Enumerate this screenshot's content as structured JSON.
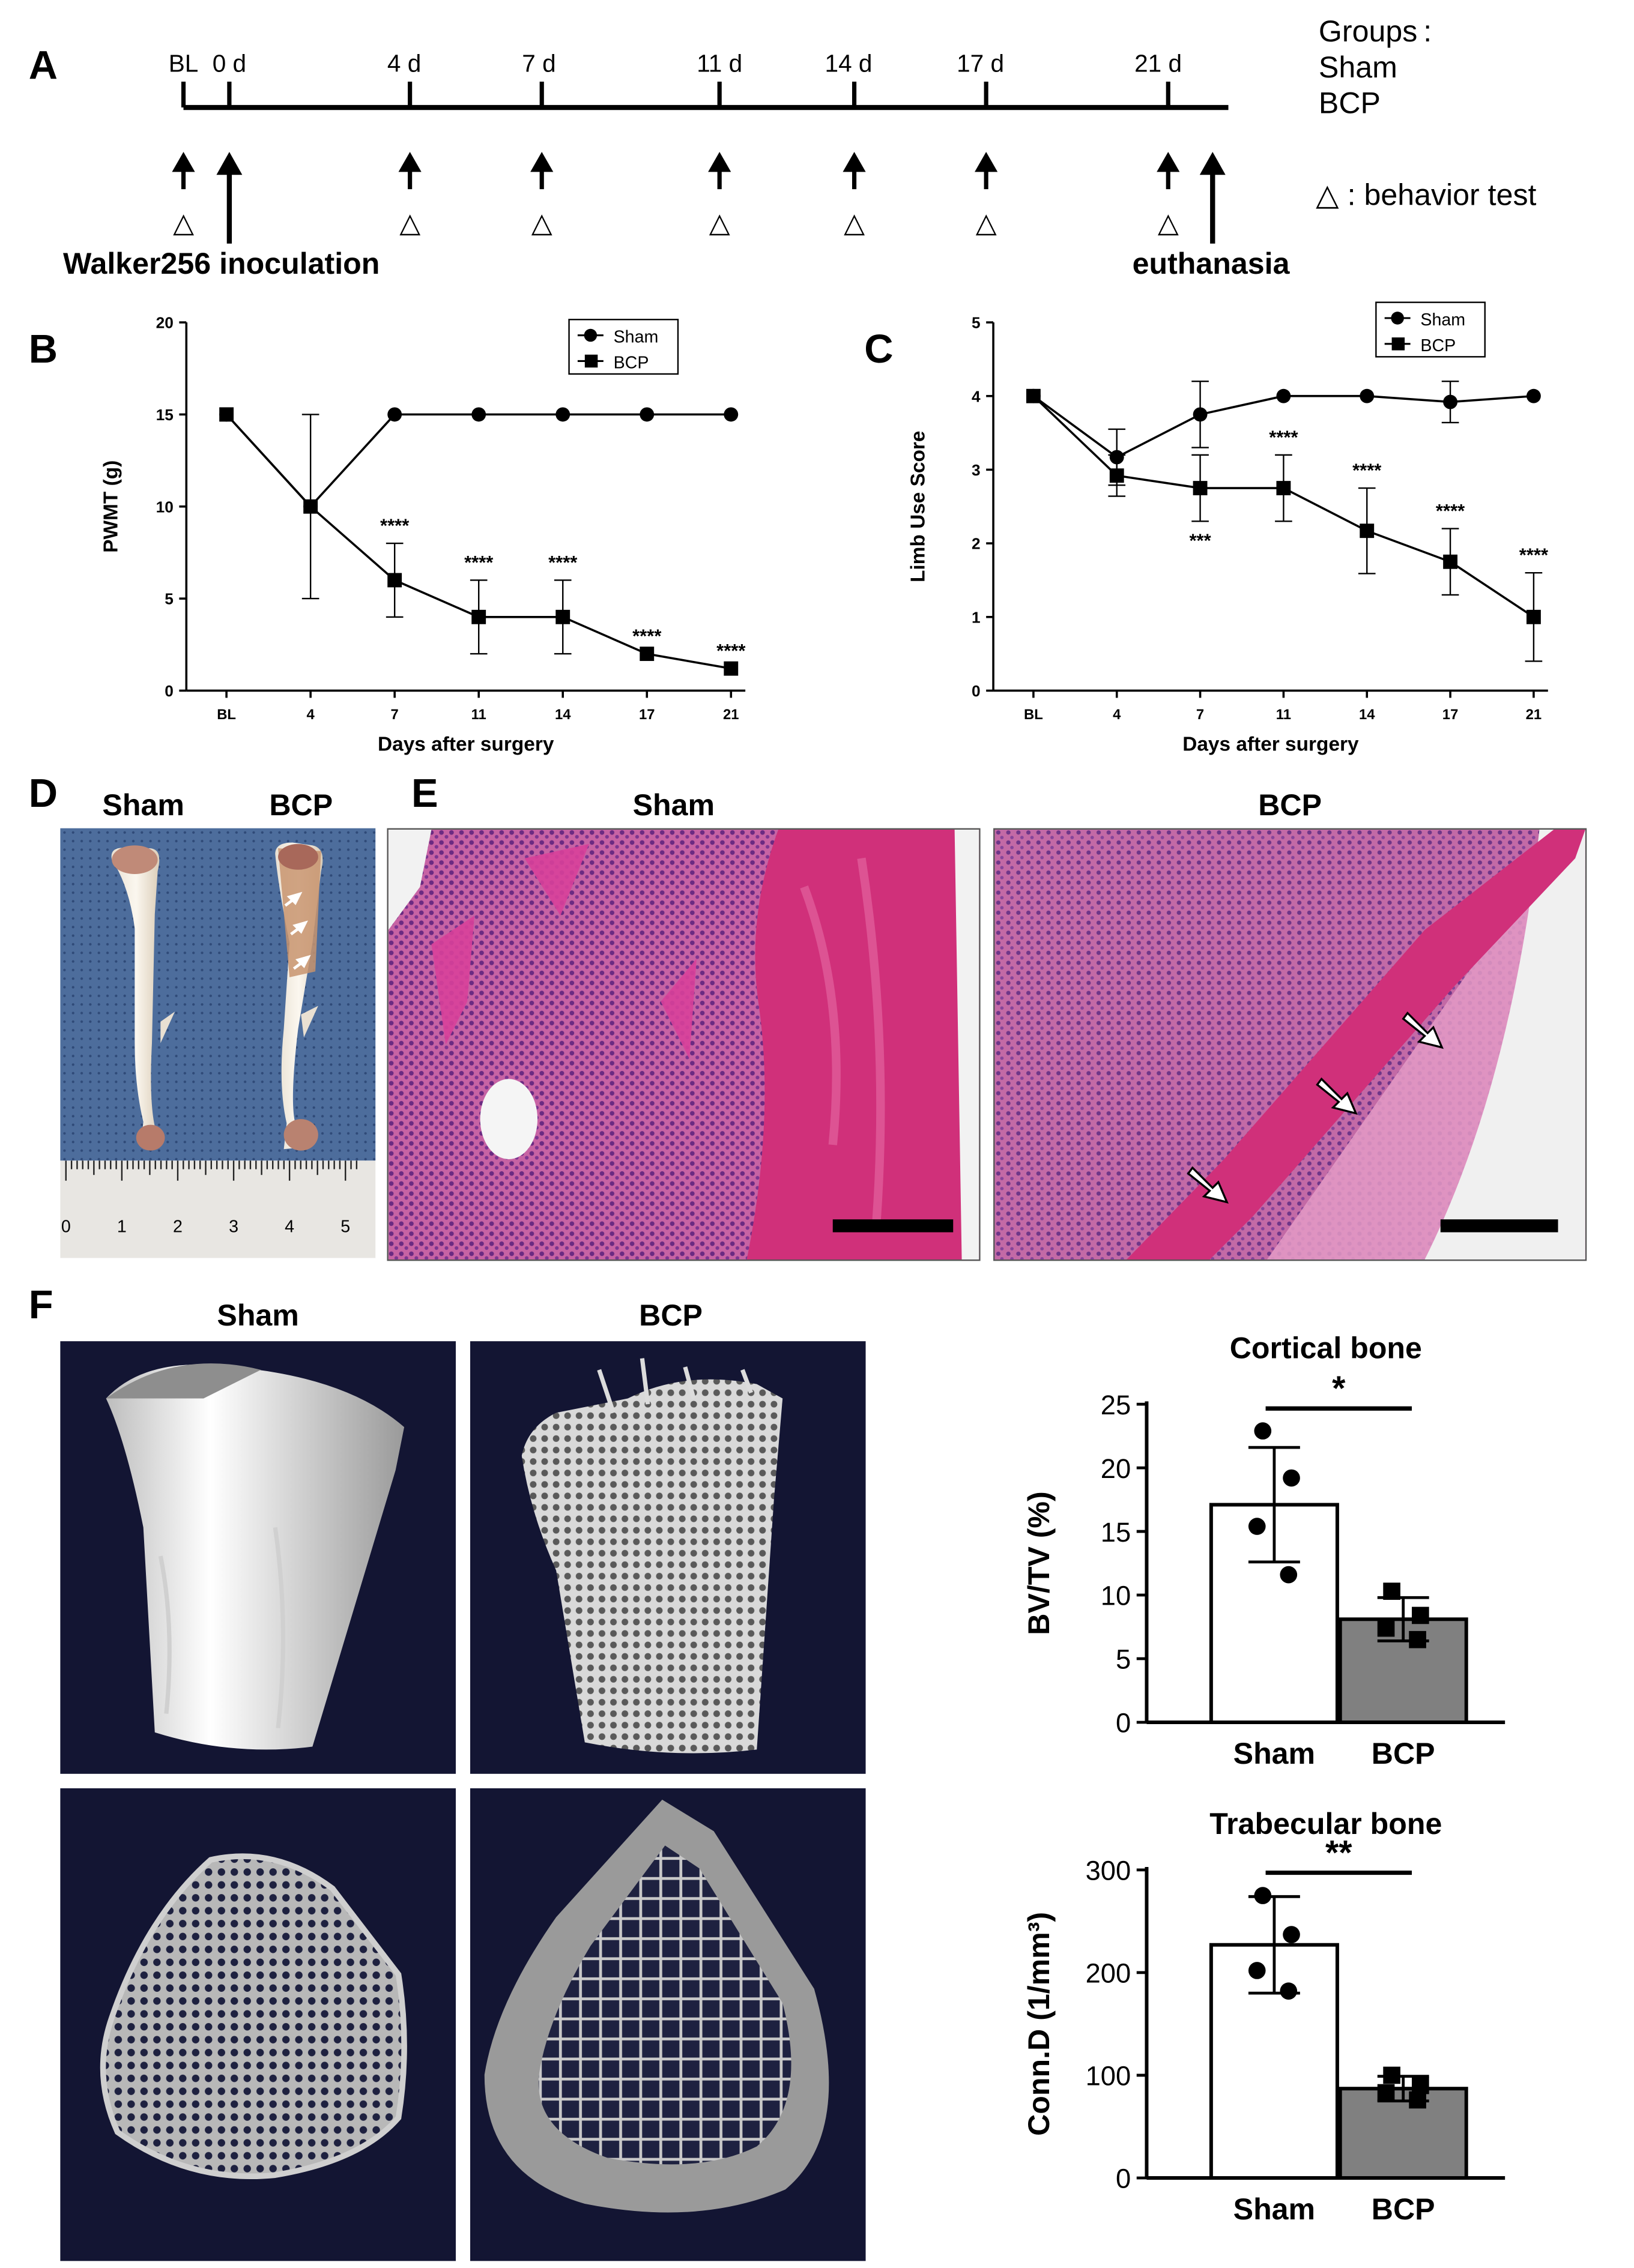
{
  "figure_labels": {
    "A": "A",
    "B": "B",
    "C": "C",
    "D": "D",
    "E": "E",
    "F": "F"
  },
  "panel_a": {
    "timeline": [
      "BL",
      "0 d",
      "4 d",
      "7 d",
      "11 d",
      "14 d",
      "17 d",
      "21 d"
    ],
    "groups_label": "Groups :",
    "groups": [
      "Sham",
      "BCP"
    ],
    "behavior_legend": "△ : behavior test",
    "triangle": "△",
    "inoculation_label": "Walker256 inoculation",
    "euthanasia_label": "euthanasia"
  },
  "colors": {
    "he_sham": "#c2569c",
    "he_bcp": "#b94c90",
    "bone_pink": "#d0307a",
    "microct_bg": "#131533",
    "bar_bcp": "#808080",
    "cloth": "#4d6d9c"
  },
  "chart_data": [
    {
      "panel": "B",
      "type": "line",
      "categories": [
        "BL",
        "4",
        "7",
        "11",
        "14",
        "17",
        "21"
      ],
      "xlabel": "Days after surgery",
      "ylabel": "PWMT (g)",
      "ylim": [
        0,
        20
      ],
      "yticks": [
        "0",
        "5",
        "10",
        "15",
        "20"
      ],
      "legend_position": "top-right",
      "series": [
        {
          "name": "Sham",
          "marker": "circle",
          "values": [
            15,
            10,
            15,
            15,
            15,
            15,
            15
          ],
          "err": [
            0,
            5,
            0,
            0,
            0,
            0,
            0
          ]
        },
        {
          "name": "BCP",
          "marker": "square",
          "values": [
            15,
            10,
            6,
            4,
            4,
            2,
            1.2
          ],
          "err": [
            0,
            0,
            2,
            2,
            2,
            0,
            0
          ]
        }
      ],
      "annotations": [
        {
          "x": "7",
          "text": "****"
        },
        {
          "x": "11",
          "text": "****"
        },
        {
          "x": "14",
          "text": "****"
        },
        {
          "x": "17",
          "text": "****"
        },
        {
          "x": "21",
          "text": "****"
        }
      ]
    },
    {
      "panel": "C",
      "type": "line",
      "categories": [
        "BL",
        "4",
        "7",
        "11",
        "14",
        "17",
        "21"
      ],
      "xlabel": "Days after surgery",
      "ylabel": "Limb Use Score",
      "ylim": [
        0,
        5
      ],
      "yticks": [
        "0",
        "1",
        "2",
        "3",
        "4",
        "5"
      ],
      "legend_position": "top-right",
      "series": [
        {
          "name": "Sham",
          "marker": "circle",
          "values": [
            4,
            3.17,
            3.75,
            4,
            4,
            3.92,
            4
          ],
          "err": [
            0,
            0.38,
            0.45,
            0,
            0,
            0.28,
            0
          ]
        },
        {
          "name": "BCP",
          "marker": "square",
          "values": [
            4,
            2.92,
            2.75,
            2.75,
            2.17,
            1.75,
            1.0
          ],
          "err": [
            0,
            0.28,
            0.45,
            0.45,
            0.58,
            0.45,
            0.6
          ]
        }
      ],
      "annotations": [
        {
          "x": "7",
          "text": "***",
          "side": "below"
        },
        {
          "x": "11",
          "text": "****"
        },
        {
          "x": "14",
          "text": "****"
        },
        {
          "x": "17",
          "text": "****"
        },
        {
          "x": "21",
          "text": "****"
        }
      ]
    },
    {
      "panel": "F-top",
      "type": "bar",
      "title": "Cortical bone",
      "categories": [
        "Sham",
        "BCP"
      ],
      "values": [
        17.1,
        8.1
      ],
      "err": [
        4.5,
        1.7
      ],
      "points": [
        [
          22.9,
          19.2,
          15.4,
          11.6
        ],
        [
          10.3,
          8.4,
          7.4,
          6.5
        ]
      ],
      "ylabel": "BV/TV (%)",
      "ylim": [
        0,
        25
      ],
      "yticks": [
        "0",
        "5",
        "10",
        "15",
        "20",
        "25"
      ],
      "significance": "*"
    },
    {
      "panel": "F-bottom",
      "type": "bar",
      "title": "Trabecular bone",
      "categories": [
        "Sham",
        "BCP"
      ],
      "values": [
        227,
        87
      ],
      "err": [
        47,
        12
      ],
      "points": [
        [
          275,
          237,
          202,
          182
        ],
        [
          100,
          90,
          83,
          76
        ]
      ],
      "ylabel": "Conn.D (1/mm³)",
      "ylim": [
        0,
        300
      ],
      "yticks": [
        "0",
        "100",
        "200",
        "300"
      ],
      "significance": "**"
    }
  ],
  "panel_d": {
    "headers": [
      "Sham",
      "BCP"
    ],
    "ruler_numbers": [
      "0",
      "1",
      "2",
      "3",
      "4",
      "5"
    ]
  },
  "panel_e": {
    "headers": [
      "Sham",
      "BCP"
    ]
  },
  "panel_f": {
    "headers": [
      "Sham",
      "BCP"
    ]
  }
}
